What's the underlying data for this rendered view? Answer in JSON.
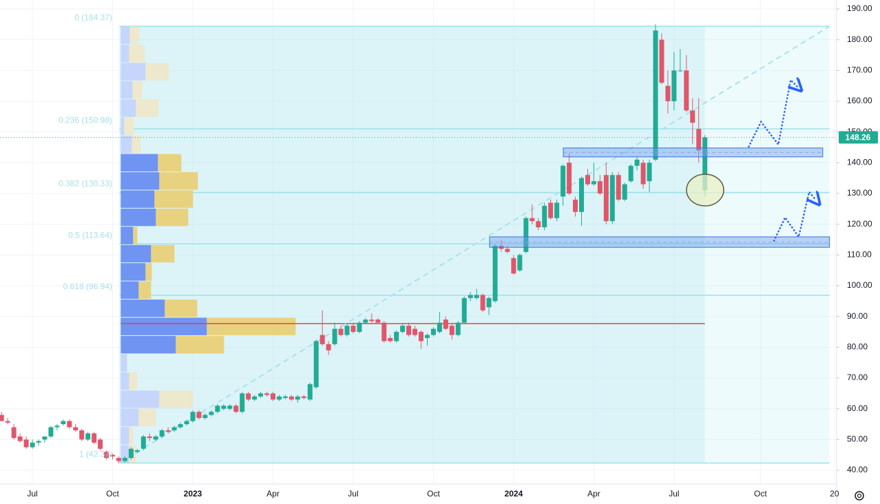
{
  "chart_data": {
    "type": "candlestick",
    "up_color": "#22ab94",
    "down_color": "#e0566a",
    "xlim": [
      -5.25,
      130.35
    ],
    "ylim": [
      35.53,
      192.91
    ],
    "grid": true,
    "xticks": [
      {
        "value": 0,
        "label": "Jul"
      },
      {
        "value": 13,
        "label": "Oct"
      },
      {
        "value": 26,
        "label": "2023"
      },
      {
        "value": 39,
        "label": "Apr"
      },
      {
        "value": 52,
        "label": "Jul"
      },
      {
        "value": 65,
        "label": "Oct"
      },
      {
        "value": 78,
        "label": "2024"
      },
      {
        "value": 91,
        "label": "Apr"
      },
      {
        "value": 104,
        "label": "Jul"
      },
      {
        "value": 118,
        "label": "Oct"
      },
      {
        "value": 130,
        "label": "20"
      }
    ],
    "yticks": [
      {
        "value": 40,
        "label": "40.00"
      },
      {
        "value": 50,
        "label": "50.00"
      },
      {
        "value": 60,
        "label": "60.00"
      },
      {
        "value": 70,
        "label": "70.00"
      },
      {
        "value": 80,
        "label": "80.00"
      },
      {
        "value": 90,
        "label": "90.00"
      },
      {
        "value": 100,
        "label": "100.00"
      },
      {
        "value": 110,
        "label": "110.00"
      },
      {
        "value": 120,
        "label": "120.00"
      },
      {
        "value": 130,
        "label": "130.00"
      },
      {
        "value": 140,
        "label": "140.00"
      },
      {
        "value": 150,
        "label": "150.00"
      },
      {
        "value": 160,
        "label": "160.00"
      },
      {
        "value": 170,
        "label": "170.00"
      },
      {
        "value": 180,
        "label": "180.00"
      },
      {
        "value": 190,
        "label": "190.00"
      }
    ],
    "x": [
      -5,
      -4,
      -3,
      -2,
      -1,
      0,
      1,
      2,
      3,
      4,
      5,
      6,
      7,
      8,
      9,
      10,
      11,
      12,
      13,
      14,
      15,
      16,
      17,
      18,
      19,
      20,
      21,
      22,
      23,
      24,
      25,
      26,
      27,
      28,
      29,
      30,
      31,
      32,
      33,
      34,
      35,
      36,
      37,
      38,
      39,
      40,
      41,
      42,
      43,
      44,
      45,
      46,
      47,
      48,
      49,
      50,
      51,
      52,
      53,
      54,
      55,
      56,
      57,
      58,
      59,
      60,
      61,
      62,
      63,
      64,
      65,
      66,
      67,
      68,
      69,
      70,
      71,
      72,
      73,
      74,
      75,
      76,
      77,
      78,
      79,
      80,
      81,
      82,
      83,
      84,
      85,
      86,
      87,
      88,
      89,
      90,
      91,
      92,
      93,
      94,
      95,
      96,
      97,
      98,
      99,
      100,
      101,
      102,
      103,
      104,
      105,
      106,
      107,
      108,
      109
    ],
    "open": [
      58,
      56,
      54,
      51,
      50,
      47.5,
      49,
      50,
      51,
      54,
      55,
      56,
      54,
      53,
      50,
      52,
      50,
      46,
      45,
      44,
      43,
      44,
      46,
      47,
      51,
      50,
      51,
      53,
      53,
      54,
      55,
      56,
      59,
      57,
      58,
      59,
      60,
      60,
      61,
      59,
      65,
      63,
      64,
      65,
      65,
      63,
      63.5,
      64,
      63,
      64,
      63,
      67,
      84,
      81,
      81,
      86,
      84,
      87,
      85,
      88,
      89,
      89,
      88,
      83,
      82,
      85,
      87,
      86,
      85,
      83,
      84,
      85,
      89,
      87,
      84,
      88,
      96,
      96,
      97,
      93,
      95,
      113,
      112,
      109,
      105,
      111,
      122,
      121,
      119,
      127,
      122,
      129,
      140,
      128,
      124,
      136,
      133,
      134,
      136,
      121,
      136,
      128,
      134,
      139,
      140,
      134,
      141,
      180,
      165,
      160,
      170,
      170,
      157,
      151,
      131
    ],
    "high": [
      59,
      57,
      55,
      52,
      51,
      50,
      50,
      51,
      54.5,
      55,
      56.5,
      56.5,
      55,
      53.5,
      52.5,
      52.5,
      50.5,
      46.5,
      45.5,
      44.5,
      44.5,
      47.5,
      47,
      51.5,
      52,
      51.5,
      53.5,
      54,
      54.5,
      55.5,
      56.5,
      59.5,
      59.5,
      58.5,
      59.5,
      61.5,
      61.5,
      61.5,
      61.5,
      65.5,
      65.5,
      64.5,
      65.5,
      65.5,
      65.5,
      64.5,
      64.5,
      64.5,
      64.5,
      64.5,
      68.5,
      82.5,
      92,
      82,
      88,
      87,
      87.5,
      88,
      88.5,
      89.5,
      91,
      89.5,
      88.5,
      84,
      85.5,
      87.5,
      88,
      87,
      85.5,
      84.5,
      86.5,
      91.5,
      90,
      87.5,
      88.5,
      96.5,
      98,
      99,
      97.5,
      96.5,
      113.5,
      115,
      113,
      110,
      110.5,
      122.5,
      126.5,
      122,
      127,
      128,
      128,
      139.5,
      143,
      129,
      135.5,
      138,
      140,
      136,
      140,
      137,
      137,
      133.5,
      139.5,
      142,
      141,
      141,
      185,
      182,
      170,
      176,
      177,
      175,
      161,
      161,
      149
    ],
    "low": [
      56,
      55,
      50,
      49,
      47,
      47,
      48,
      49,
      50.5,
      53,
      54.5,
      53.5,
      52.5,
      49.5,
      49.5,
      48.5,
      46.5,
      43.5,
      43.5,
      42.3,
      42.5,
      43.5,
      45.5,
      46.5,
      49.5,
      49.5,
      50.5,
      52,
      52.5,
      53.5,
      54.5,
      55.5,
      56.5,
      56.5,
      57.5,
      58.5,
      59.5,
      59.5,
      58.5,
      58.5,
      62.5,
      62.5,
      63.5,
      64,
      62.5,
      62.5,
      63,
      62.5,
      62,
      63,
      62.5,
      66.5,
      80.5,
      77.5,
      80.5,
      83.5,
      83.5,
      84.5,
      84.5,
      87.5,
      88,
      87.5,
      81.5,
      81.5,
      81.5,
      84.5,
      83.5,
      83.5,
      79.5,
      80.5,
      83.5,
      84.5,
      85.5,
      82.5,
      83.5,
      87.5,
      95,
      95.5,
      91.5,
      90.5,
      94.5,
      111,
      110.5,
      103.5,
      104.5,
      110.5,
      120,
      118,
      118,
      121.5,
      121,
      126,
      129.5,
      122.5,
      119.5,
      132.5,
      132.5,
      129.5,
      120,
      120,
      127.5,
      127.5,
      133.5,
      137.5,
      131.5,
      130.5,
      140.5,
      165.5,
      156,
      157,
      169.5,
      156.5,
      146,
      140,
      129
    ],
    "close": [
      56,
      55.5,
      50.5,
      49.5,
      47.5,
      49,
      49.5,
      51,
      54,
      54.5,
      56,
      54,
      53,
      50,
      52,
      49,
      47,
      44,
      44.5,
      43,
      44,
      47,
      46.5,
      51,
      50.5,
      51,
      53,
      52.5,
      54,
      55,
      56,
      59,
      57,
      58,
      59,
      61,
      61,
      61,
      59,
      65,
      63,
      64,
      65,
      64.5,
      63,
      64,
      64,
      63,
      64,
      63.5,
      68,
      82,
      81,
      79,
      86,
      84,
      87,
      85,
      88,
      89,
      88.5,
      88,
      82,
      82,
      85,
      87,
      84,
      84,
      82,
      84,
      86,
      88,
      86,
      84,
      88,
      96,
      97,
      97,
      92,
      96,
      113,
      112,
      111,
      104,
      110,
      122,
      121,
      119,
      126,
      122,
      127,
      139,
      130,
      124,
      135,
      133,
      134,
      130,
      121,
      136,
      128,
      133,
      139,
      141,
      133,
      140,
      183,
      166,
      160,
      170,
      170,
      157,
      153,
      144,
      148.26
    ],
    "fib_levels": [
      {
        "label": "0 (184.37)",
        "value": 184.37
      },
      {
        "label": "0.236 (150.98)",
        "value": 150.98
      },
      {
        "label": "0.382 (130.33)",
        "value": 130.33
      },
      {
        "label": "0.5 (113.64)",
        "value": 113.64
      },
      {
        "label": "0.618 (96.94)",
        "value": 96.94
      },
      {
        "label": "1 (42.37)",
        "value": 42.37
      }
    ],
    "trendline": {
      "x": [
        14.1,
        129.2
      ],
      "y": [
        42.37,
        184.37
      ]
    },
    "volume_profile": {
      "bins": [
        184.37,
        178.45,
        172.54,
        166.62,
        160.71,
        154.79,
        148.87,
        142.96,
        137.04,
        131.12,
        125.21,
        119.29,
        113.37,
        107.46,
        101.54,
        95.62,
        89.71,
        83.79,
        77.87,
        71.96,
        66.04,
        60.12,
        54.21,
        48.29,
        42.37
      ],
      "up": [
        13,
        12,
        36,
        17,
        22,
        5,
        16,
        54,
        56,
        49,
        51,
        18,
        44,
        36,
        26,
        64,
        125,
        80,
        9,
        12,
        56,
        26,
        12,
        12
      ],
      "down": [
        14,
        23,
        34,
        14,
        33,
        14,
        13,
        34,
        56,
        56,
        47,
        6,
        34,
        9,
        18,
        47,
        129,
        70,
        0,
        12,
        49,
        25,
        6,
        10
      ],
      "value_area": [
        77.87,
        142.96
      ],
      "poc": 87.7
    },
    "zones": [
      {
        "top": 144.8,
        "bottom": 141.9,
        "x": [
          86.05,
          128.1
        ]
      },
      {
        "top": 115.9,
        "bottom": 112.5,
        "x": [
          74.1,
          129.2
        ]
      }
    ],
    "projections": [
      {
        "x": [
          116.1,
          118.1,
          120.9,
          122.9,
          124.0
        ],
        "y": [
          145.2,
          153.3,
          145.9,
          166.9,
          164.7
        ]
      },
      {
        "x": [
          120.2,
          122.0,
          124.2,
          125.9,
          127.0
        ],
        "y": [
          114.6,
          122.2,
          115.9,
          130.5,
          127.8
        ]
      }
    ]
  }
}
